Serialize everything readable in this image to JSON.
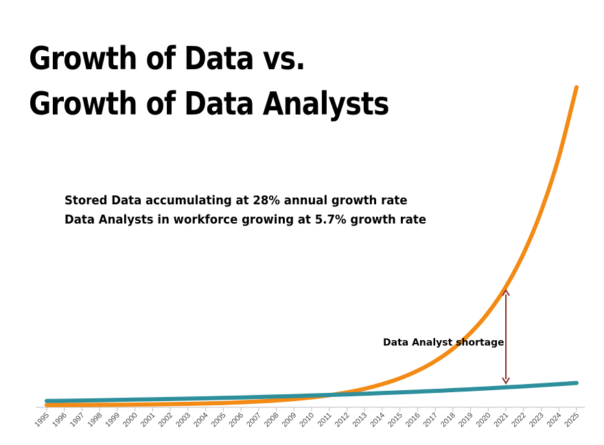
{
  "colors": {
    "stored_data": "#f28a13",
    "data_analysts": "#2e8f9c",
    "arrow": "#8b2f2f",
    "axis": "#bbbbbb"
  },
  "chart_data": {
    "type": "line",
    "title_lines": [
      "Growth of Data vs.",
      "Growth of Data Analysts"
    ],
    "annotations": [
      "Stored Data accumulating at 28% annual growth rate",
      "Data Analysts in workforce growing at 5.7% growth rate"
    ],
    "shortage_label": "Data Analyst shortage",
    "x": [
      "1995",
      "1996",
      "1997",
      "1998",
      "1999",
      "2000",
      "2001",
      "2002",
      "2003",
      "2004",
      "2005",
      "2006",
      "2007",
      "2008",
      "2009",
      "2010",
      "2011",
      "2012",
      "2013",
      "2014",
      "2015",
      "2016",
      "2017",
      "2018",
      "2019",
      "2020",
      "2021",
      "2022",
      "2023",
      "2024",
      "2025"
    ],
    "series": [
      {
        "key": "stored_data",
        "growth_rate": 0.28,
        "values": [
          0.06,
          0.08,
          0.1,
          0.13,
          0.16,
          0.21,
          0.26,
          0.34,
          0.43,
          0.55,
          0.7,
          0.9,
          1.15,
          1.47,
          1.88,
          2.41,
          3.09,
          3.95,
          5.06,
          6.48,
          8.29,
          10.61,
          13.58,
          17.38,
          22.25,
          28.48,
          36.45,
          46.66,
          59.72,
          76.44,
          97.85
        ]
      },
      {
        "key": "data_analysts",
        "growth_rate": 0.057,
        "values": [
          1.3,
          1.37,
          1.45,
          1.53,
          1.62,
          1.72,
          1.81,
          1.92,
          2.03,
          2.14,
          2.26,
          2.39,
          2.53,
          2.67,
          2.83,
          2.99,
          3.16,
          3.34,
          3.53,
          3.73,
          3.94,
          4.17,
          4.4,
          4.66,
          4.92,
          5.2,
          5.5,
          5.81,
          6.14,
          6.49,
          6.86
        ]
      }
    ],
    "shortage_year": "2021",
    "ylim": [
      0,
      100
    ],
    "grid": false,
    "legend": "none"
  }
}
